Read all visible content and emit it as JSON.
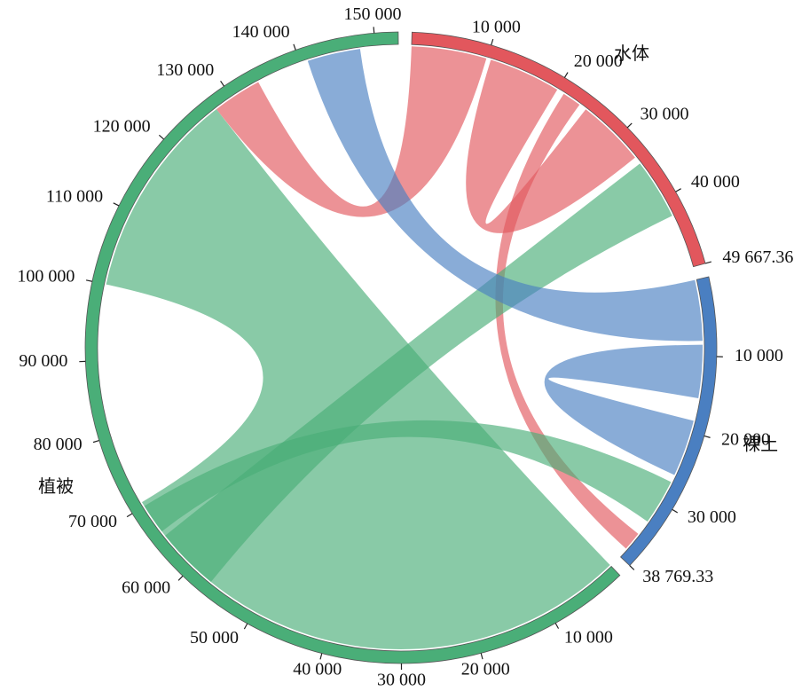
{
  "chart_data": {
    "type": "chord",
    "groups": [
      {
        "name": "水体",
        "color": "#e2575d",
        "total": {
          "value": 49667.36,
          "label": "49 667.36"
        },
        "ticks": [
          {
            "value": 10000,
            "label": "10 000"
          },
          {
            "value": 20000,
            "label": "20 000"
          },
          {
            "value": 30000,
            "label": "30 000"
          },
          {
            "value": 40000,
            "label": "40 000"
          }
        ]
      },
      {
        "name": "裸土",
        "color": "#4a7fc1",
        "total": {
          "value": 38769.33,
          "label": "38 769.33"
        },
        "ticks": [
          {
            "value": 10000,
            "label": "10 000"
          },
          {
            "value": 20000,
            "label": "20 000"
          },
          {
            "value": 30000,
            "label": "30 000"
          }
        ]
      },
      {
        "name": "植被",
        "color": "#4aae78",
        "total": 153000,
        "ticks": [
          {
            "value": 10000,
            "label": "10 000"
          },
          {
            "value": 20000,
            "label": "20 000"
          },
          {
            "value": 30000,
            "label": "30 000"
          },
          {
            "value": 40000,
            "label": "40 000"
          },
          {
            "value": 50000,
            "label": "50 000"
          },
          {
            "value": 60000,
            "label": "60 000"
          },
          {
            "value": 70000,
            "label": "70 000"
          },
          {
            "value": 80000,
            "label": "80 000"
          },
          {
            "value": 90000,
            "label": "90 000"
          },
          {
            "value": 100000,
            "label": "100 000"
          },
          {
            "value": 110000,
            "label": "110 000"
          },
          {
            "value": 120000,
            "label": "120 000"
          },
          {
            "value": 130000,
            "label": "130 000"
          },
          {
            "value": 140000,
            "label": "140 000"
          },
          {
            "value": 150000,
            "label": "150 000"
          }
        ]
      }
    ],
    "ribbons": [
      {
        "from": 0,
        "from_range": [
          0,
          9900
        ],
        "to": 2,
        "to_range": [
          127500,
          134000
        ]
      },
      {
        "from": 0,
        "from_range": [
          10500,
          20000
        ],
        "to": 0,
        "to_range": [
          24500,
          33500
        ]
      },
      {
        "from": 0,
        "from_range": [
          21000,
          23500
        ],
        "to": 1,
        "to_range": [
          35000,
          37500
        ]
      },
      {
        "from": 2,
        "from_range": [
          56800,
          65300
        ],
        "to": 0,
        "to_range": [
          34500,
          42500
        ]
      },
      {
        "from": 1,
        "from_range": [
          0,
          8000
        ],
        "to": 2,
        "to_range": [
          141000,
          148000
        ]
      },
      {
        "from": 1,
        "from_range": [
          8500,
          15500
        ],
        "to": 1,
        "to_range": [
          18500,
          26000
        ]
      },
      {
        "from": 2,
        "from_range": [
          0,
          70600
        ],
        "to": 2,
        "to_range": [
          100000,
          127500
        ]
      },
      {
        "from": 2,
        "from_range": [
          66000,
          70000
        ],
        "to": 1,
        "to_range": [
          27000,
          33000
        ]
      }
    ]
  }
}
